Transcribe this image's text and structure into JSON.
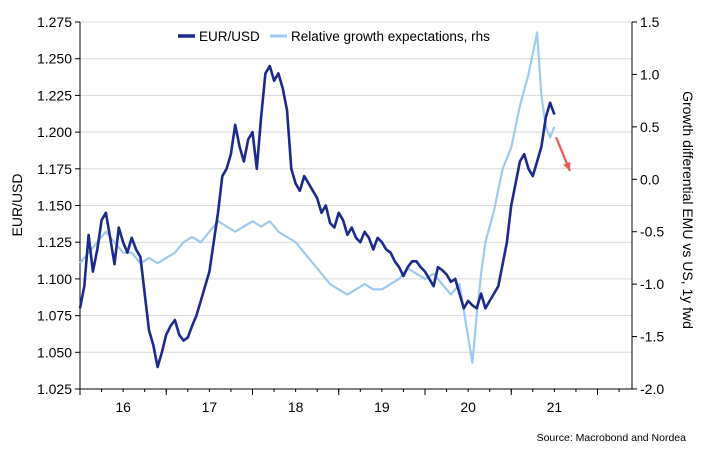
{
  "chart_data": {
    "type": "line",
    "title": "",
    "legend": {
      "placement": "top-center",
      "entries": [
        {
          "label": "EUR/USD",
          "color": "#1b2a8c"
        },
        {
          "label": "Relative growth expectations, rhs",
          "color": "#9ec9f0"
        }
      ]
    },
    "ylabel_left": "EUR/USD",
    "ylabel_right": "Growth differential EMU vs US, 1y fwd",
    "source": "Source: Macrobond and Nordea",
    "x_ticks": [
      "16",
      "17",
      "18",
      "19",
      "20",
      "21"
    ],
    "xlim": [
      2015.5,
      2021.9
    ],
    "ylim_left": [
      1.025,
      1.275
    ],
    "yticks_left": [
      "1.025",
      "1.050",
      "1.075",
      "1.100",
      "1.125",
      "1.150",
      "1.175",
      "1.200",
      "1.225",
      "1.250",
      "1.275"
    ],
    "ylim_right": [
      -2.0,
      1.5
    ],
    "yticks_right": [
      "-2.0",
      "-1.5",
      "-1.0",
      "-0.5",
      "0.0",
      "0.5",
      "1.0",
      "1.5"
    ],
    "grid": "horizontal",
    "colors": {
      "eurusd": "#1b2a8c",
      "growth": "#9ec9f0",
      "arrow": "#f05a55",
      "grid": "#d9d9d9"
    },
    "series": [
      {
        "name": "EUR/USD",
        "axis": "left",
        "x": [
          2015.5,
          2015.55,
          2015.6,
          2015.65,
          2015.7,
          2015.75,
          2015.8,
          2015.85,
          2015.9,
          2015.95,
          2016.0,
          2016.05,
          2016.1,
          2016.15,
          2016.2,
          2016.25,
          2016.3,
          2016.35,
          2016.4,
          2016.45,
          2016.5,
          2016.55,
          2016.6,
          2016.65,
          2016.7,
          2016.75,
          2016.8,
          2016.85,
          2016.9,
          2016.95,
          2017.0,
          2017.05,
          2017.1,
          2017.15,
          2017.2,
          2017.25,
          2017.3,
          2017.35,
          2017.4,
          2017.45,
          2017.5,
          2017.55,
          2017.6,
          2017.65,
          2017.7,
          2017.75,
          2017.8,
          2017.85,
          2017.9,
          2017.95,
          2018.0,
          2018.05,
          2018.1,
          2018.15,
          2018.2,
          2018.25,
          2018.3,
          2018.35,
          2018.4,
          2018.45,
          2018.5,
          2018.55,
          2018.6,
          2018.65,
          2018.7,
          2018.75,
          2018.8,
          2018.85,
          2018.9,
          2018.95,
          2019.0,
          2019.05,
          2019.1,
          2019.15,
          2019.2,
          2019.25,
          2019.3,
          2019.35,
          2019.4,
          2019.45,
          2019.5,
          2019.55,
          2019.6,
          2019.65,
          2019.7,
          2019.75,
          2019.8,
          2019.85,
          2019.9,
          2019.95,
          2020.0,
          2020.05,
          2020.1,
          2020.15,
          2020.2,
          2020.25,
          2020.3,
          2020.35,
          2020.4,
          2020.45,
          2020.5,
          2020.55,
          2020.6,
          2020.65,
          2020.7,
          2020.75,
          2020.8,
          2020.85,
          2020.9,
          2020.95,
          2021.0
        ],
        "values": [
          1.08,
          1.095,
          1.13,
          1.105,
          1.12,
          1.14,
          1.145,
          1.128,
          1.11,
          1.135,
          1.125,
          1.118,
          1.128,
          1.12,
          1.115,
          1.09,
          1.065,
          1.055,
          1.04,
          1.05,
          1.062,
          1.068,
          1.072,
          1.062,
          1.058,
          1.06,
          1.068,
          1.075,
          1.085,
          1.095,
          1.105,
          1.125,
          1.145,
          1.17,
          1.175,
          1.185,
          1.205,
          1.19,
          1.18,
          1.195,
          1.2,
          1.175,
          1.21,
          1.24,
          1.245,
          1.235,
          1.24,
          1.23,
          1.215,
          1.175,
          1.165,
          1.16,
          1.17,
          1.165,
          1.16,
          1.155,
          1.145,
          1.15,
          1.138,
          1.135,
          1.145,
          1.14,
          1.13,
          1.135,
          1.128,
          1.125,
          1.132,
          1.128,
          1.12,
          1.128,
          1.125,
          1.12,
          1.118,
          1.112,
          1.108,
          1.102,
          1.108,
          1.112,
          1.112,
          1.108,
          1.105,
          1.1,
          1.095,
          1.108,
          1.106,
          1.103,
          1.098,
          1.1,
          1.09,
          1.08,
          1.085,
          1.082,
          1.08,
          1.09,
          1.08,
          1.085,
          1.09,
          1.095,
          1.11,
          1.125,
          1.15,
          1.165,
          1.18,
          1.185,
          1.175,
          1.17,
          1.18,
          1.19,
          1.21,
          1.22,
          1.212
        ]
      },
      {
        "name": "Relative growth expectations, rhs",
        "axis": "right",
        "x": [
          2015.5,
          2015.6,
          2015.7,
          2015.8,
          2015.9,
          2016.0,
          2016.1,
          2016.2,
          2016.3,
          2016.4,
          2016.5,
          2016.6,
          2016.7,
          2016.8,
          2016.9,
          2017.0,
          2017.1,
          2017.2,
          2017.3,
          2017.4,
          2017.5,
          2017.6,
          2017.7,
          2017.8,
          2017.9,
          2018.0,
          2018.1,
          2018.2,
          2018.3,
          2018.4,
          2018.5,
          2018.6,
          2018.7,
          2018.8,
          2018.9,
          2019.0,
          2019.1,
          2019.2,
          2019.3,
          2019.4,
          2019.5,
          2019.6,
          2019.7,
          2019.8,
          2019.9,
          2020.0,
          2020.05,
          2020.1,
          2020.15,
          2020.2,
          2020.3,
          2020.4,
          2020.5,
          2020.6,
          2020.7,
          2020.75,
          2020.8,
          2020.85,
          2020.9,
          2020.95,
          2021.0
        ],
        "values": [
          -0.8,
          -0.7,
          -0.6,
          -0.5,
          -0.6,
          -0.7,
          -0.7,
          -0.8,
          -0.75,
          -0.8,
          -0.75,
          -0.7,
          -0.6,
          -0.55,
          -0.6,
          -0.5,
          -0.4,
          -0.45,
          -0.5,
          -0.45,
          -0.4,
          -0.45,
          -0.4,
          -0.5,
          -0.55,
          -0.6,
          -0.7,
          -0.8,
          -0.9,
          -1.0,
          -1.05,
          -1.1,
          -1.05,
          -1.0,
          -1.05,
          -1.05,
          -1.0,
          -0.95,
          -0.85,
          -0.9,
          -0.95,
          -0.9,
          -1.0,
          -1.1,
          -1.0,
          -1.5,
          -1.75,
          -1.3,
          -0.9,
          -0.6,
          -0.3,
          0.1,
          0.3,
          0.7,
          1.0,
          1.2,
          1.4,
          0.8,
          0.5,
          0.4,
          0.5
        ]
      }
    ],
    "annotations": [
      {
        "type": "arrow",
        "from": [
          2021.02,
          0.4
        ],
        "to": [
          2021.18,
          0.08
        ],
        "axis": "right"
      }
    ]
  }
}
